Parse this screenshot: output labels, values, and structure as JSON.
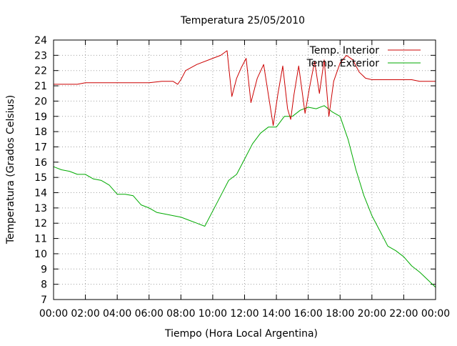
{
  "chart_data": {
    "type": "line",
    "title": "Temperatura 25/05/2010",
    "xlabel": "Tiempo (Hora Local Argentina)",
    "ylabel": "Temperatura (Grados Celsius)",
    "x_ticks": [
      "00:00",
      "02:00",
      "04:00",
      "06:00",
      "08:00",
      "10:00",
      "12:00",
      "14:00",
      "16:00",
      "18:00",
      "20:00",
      "22:00",
      "00:00"
    ],
    "xlim": [
      0,
      24
    ],
    "ylim": [
      7,
      24
    ],
    "y_ticks": [
      7,
      8,
      9,
      10,
      11,
      12,
      13,
      14,
      15,
      16,
      17,
      18,
      19,
      20,
      21,
      22,
      23,
      24
    ],
    "grid": true,
    "legend": "top-right",
    "series": [
      {
        "name": "Temp. Interior",
        "color": "#cc0000",
        "x": [
          0,
          1.5,
          2,
          4,
          6,
          6.8,
          7.5,
          7.8,
          8.0,
          8.3,
          9,
          10,
          10.5,
          10.9,
          11.2,
          11.5,
          11.8,
          12.1,
          12.4,
          12.8,
          13.2,
          13.5,
          13.8,
          14.1,
          14.4,
          14.7,
          14.9,
          15.1,
          15.4,
          15.8,
          16.1,
          16.4,
          16.7,
          17.0,
          17.3,
          17.6,
          18.0,
          18.4,
          18.8,
          19.2,
          19.6,
          20,
          20.5,
          21,
          22,
          22.5,
          23,
          24
        ],
        "y": [
          21.1,
          21.1,
          21.2,
          21.2,
          21.2,
          21.3,
          21.3,
          21.1,
          21.4,
          22.0,
          22.4,
          22.8,
          23.0,
          23.3,
          20.3,
          21.5,
          22.2,
          22.8,
          19.9,
          21.5,
          22.4,
          20.4,
          18.4,
          20.5,
          22.3,
          19.5,
          18.8,
          20.4,
          22.3,
          19.2,
          21.0,
          22.6,
          20.5,
          22.7,
          19.0,
          21.3,
          22.5,
          23.0,
          22.7,
          21.9,
          21.5,
          21.4,
          21.4,
          21.4,
          21.4,
          21.4,
          21.3,
          21.3
        ]
      },
      {
        "name": "Temp. Exterior",
        "color": "#00aa00",
        "x": [
          0,
          0.5,
          1,
          1.5,
          2,
          2.5,
          3,
          3.5,
          4,
          4.5,
          5,
          5.5,
          6,
          6.5,
          7,
          7.5,
          8,
          8.5,
          9,
          9.5,
          10,
          10.5,
          11,
          11.5,
          12,
          12.5,
          13,
          13.5,
          14,
          14.5,
          15,
          15.5,
          16,
          16.5,
          17,
          17.5,
          18,
          18.5,
          19,
          19.5,
          20,
          20.5,
          21,
          21.5,
          22,
          22.5,
          23,
          23.5,
          24
        ],
        "y": [
          15.7,
          15.5,
          15.4,
          15.2,
          15.2,
          14.9,
          14.8,
          14.5,
          13.9,
          13.9,
          13.8,
          13.2,
          13.0,
          12.7,
          12.6,
          12.5,
          12.4,
          12.2,
          12.0,
          11.8,
          12.8,
          13.8,
          14.8,
          15.2,
          16.2,
          17.2,
          17.9,
          18.3,
          18.3,
          19.0,
          19.0,
          19.4,
          19.6,
          19.5,
          19.7,
          19.3,
          19.0,
          17.5,
          15.5,
          13.8,
          12.5,
          11.5,
          10.5,
          10.2,
          9.8,
          9.2,
          8.8,
          8.3,
          7.8
        ]
      }
    ]
  }
}
